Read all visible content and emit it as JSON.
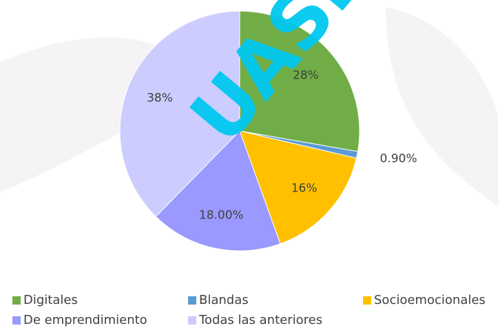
{
  "chart_data": {
    "type": "pie",
    "categories": [
      "Digitales",
      "Blandas",
      "Socioemocionales",
      "De emprendimiento",
      "Todas las anteriores"
    ],
    "values": [
      28,
      0.9,
      16,
      18,
      38
    ],
    "value_labels": [
      "28%",
      "0.90%",
      "16%",
      "18.00%",
      "38%"
    ],
    "colors": [
      "#70ad47",
      "#5b9bd5",
      "#ffc000",
      "#9999ff",
      "#ccccff"
    ],
    "watermark": "UASD"
  }
}
